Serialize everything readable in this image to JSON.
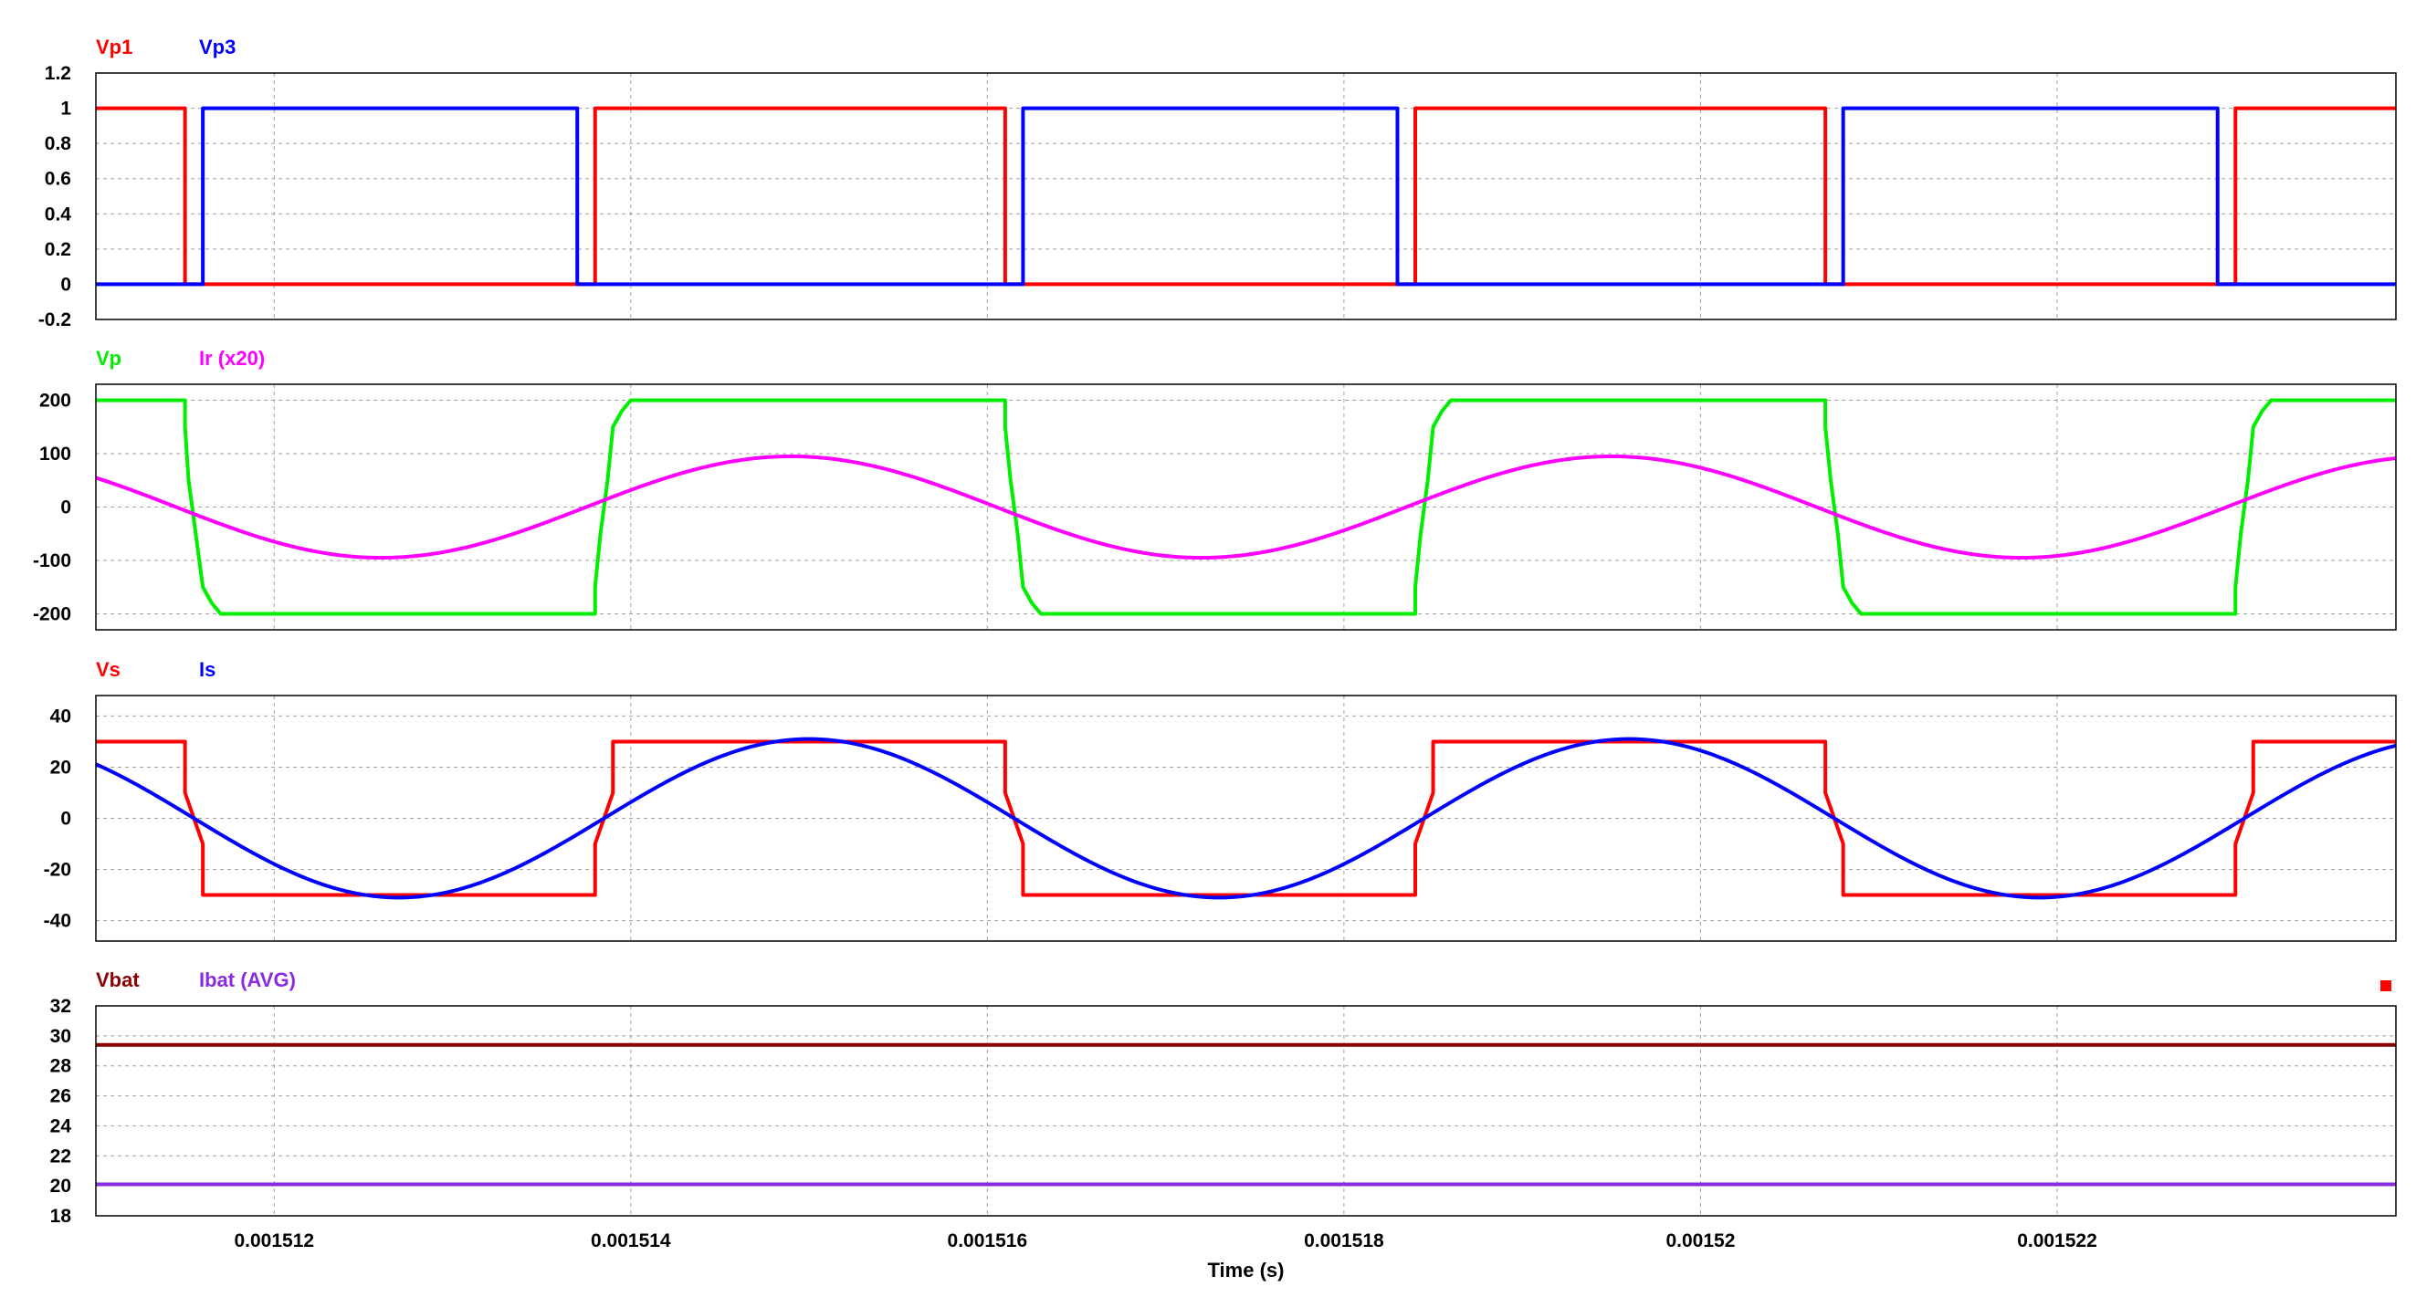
{
  "chart_data": [
    {
      "type": "line",
      "legend_placement": "top-left",
      "ylim": [
        -0.2,
        1.2
      ],
      "yticks": [
        1.2,
        1,
        0.8,
        0.6,
        0.4,
        0.2,
        0,
        -0.2
      ],
      "grid": true,
      "series": [
        {
          "name": "Vp1",
          "color": "#ff0000",
          "points": [
            [
              0.001511,
              1
            ],
            [
              0.0015115,
              1
            ],
            [
              0.0015115,
              0
            ],
            [
              0.0015138,
              0
            ],
            [
              0.0015138,
              1
            ],
            [
              0.0015161,
              1
            ],
            [
              0.0015161,
              0
            ],
            [
              0.0015184,
              0
            ],
            [
              0.0015184,
              1
            ],
            [
              0.0015207,
              1
            ],
            [
              0.0015207,
              0
            ],
            [
              0.001523,
              0
            ],
            [
              0.001523,
              1
            ],
            [
              0.0015239,
              1
            ]
          ]
        },
        {
          "name": "Vp3",
          "color": "#0000ff",
          "points": [
            [
              0.001511,
              0
            ],
            [
              0.0015116,
              0
            ],
            [
              0.0015116,
              1
            ],
            [
              0.0015137,
              1
            ],
            [
              0.0015137,
              0.5
            ],
            [
              0.0015137,
              0
            ],
            [
              0.0015162,
              0
            ],
            [
              0.0015162,
              1
            ],
            [
              0.0015183,
              1
            ],
            [
              0.0015183,
              0
            ],
            [
              0.0015208,
              0
            ],
            [
              0.0015208,
              1
            ],
            [
              0.0015229,
              1
            ],
            [
              0.0015229,
              0.5
            ],
            [
              0.0015229,
              0
            ],
            [
              0.0015239,
              0
            ]
          ]
        }
      ]
    },
    {
      "type": "line",
      "legend_placement": "top-left",
      "ylim": [
        -230,
        230
      ],
      "yticks": [
        200,
        100,
        0,
        -100,
        -200
      ],
      "grid": true,
      "series": [
        {
          "name": "Vp",
          "color": "#00ee00",
          "points": [
            [
              0.001511,
              200
            ],
            [
              0.0015115,
              200
            ],
            [
              0.0015115,
              150
            ],
            [
              0.00151152,
              50
            ],
            [
              0.00151156,
              -50
            ],
            [
              0.0015116,
              -150
            ],
            [
              0.00151165,
              -180
            ],
            [
              0.0015117,
              -200
            ],
            [
              0.0015138,
              -200
            ],
            [
              0.0015138,
              -150
            ],
            [
              0.00151383,
              -50
            ],
            [
              0.00151387,
              50
            ],
            [
              0.0015139,
              150
            ],
            [
              0.00151395,
              180
            ],
            [
              0.001514,
              200
            ],
            [
              0.0015161,
              200
            ],
            [
              0.0015161,
              150
            ],
            [
              0.00151613,
              50
            ],
            [
              0.00151617,
              -50
            ],
            [
              0.0015162,
              -150
            ],
            [
              0.00151625,
              -180
            ],
            [
              0.0015163,
              -200
            ],
            [
              0.0015184,
              -200
            ],
            [
              0.0015184,
              -150
            ],
            [
              0.00151843,
              -50
            ],
            [
              0.00151847,
              50
            ],
            [
              0.0015185,
              150
            ],
            [
              0.00151855,
              180
            ],
            [
              0.0015186,
              200
            ],
            [
              0.0015207,
              200
            ],
            [
              0.0015207,
              150
            ],
            [
              0.00152073,
              50
            ],
            [
              0.00152077,
              -50
            ],
            [
              0.0015208,
              -150
            ],
            [
              0.00152085,
              -180
            ],
            [
              0.0015209,
              -200
            ],
            [
              0.001523,
              -200
            ],
            [
              0.001523,
              -150
            ],
            [
              0.00152303,
              -50
            ],
            [
              0.00152307,
              50
            ],
            [
              0.0015231,
              150
            ],
            [
              0.00152315,
              180
            ],
            [
              0.0015232,
              200
            ],
            [
              0.0015239,
              200
            ]
          ]
        },
        {
          "name": "Ir (x20)",
          "color": "#ff00ff",
          "sine": {
            "amplitude": 95,
            "period": 4.6e-06,
            "phase_x": 0.0015149,
            "offset": 0
          }
        }
      ]
    },
    {
      "type": "line",
      "legend_placement": "top-left",
      "ylim": [
        -48,
        48
      ],
      "yticks": [
        40,
        20,
        0,
        -20,
        -40
      ],
      "grid": true,
      "series": [
        {
          "name": "Vs",
          "color": "#ff0000",
          "points": [
            [
              0.001511,
              30
            ],
            [
              0.0015115,
              30
            ],
            [
              0.0015115,
              10
            ],
            [
              0.0015116,
              -10
            ],
            [
              0.0015116,
              -30
            ],
            [
              0.0015138,
              -30
            ],
            [
              0.0015138,
              -10
            ],
            [
              0.0015139,
              10
            ],
            [
              0.0015139,
              30
            ],
            [
              0.0015161,
              30
            ],
            [
              0.0015161,
              10
            ],
            [
              0.0015162,
              -10
            ],
            [
              0.0015162,
              -30
            ],
            [
              0.0015184,
              -30
            ],
            [
              0.0015184,
              -10
            ],
            [
              0.0015185,
              10
            ],
            [
              0.0015185,
              30
            ],
            [
              0.0015207,
              30
            ],
            [
              0.0015207,
              10
            ],
            [
              0.0015208,
              -10
            ],
            [
              0.0015208,
              -30
            ],
            [
              0.001523,
              -30
            ],
            [
              0.001523,
              -10
            ],
            [
              0.0015231,
              10
            ],
            [
              0.0015231,
              30
            ],
            [
              0.0015239,
              30
            ]
          ]
        },
        {
          "name": "Is",
          "color": "#0000ff",
          "sine": {
            "amplitude": 31,
            "period": 4.6e-06,
            "phase_x": 0.001515,
            "offset": 0
          }
        }
      ]
    },
    {
      "type": "line",
      "legend_placement": "top-left",
      "ylim": [
        18,
        32
      ],
      "yticks": [
        32,
        30,
        28,
        26,
        24,
        22,
        20,
        18
      ],
      "grid": true,
      "series": [
        {
          "name": "Vbat",
          "color": "#8b0000",
          "points": [
            [
              0.001511,
              29.4
            ],
            [
              0.0015239,
              29.4
            ]
          ]
        },
        {
          "name": "Ibat (AVG)",
          "color": "#8a2be2",
          "points": [
            [
              0.001511,
              20.1
            ],
            [
              0.0015239,
              20.1
            ]
          ]
        }
      ]
    }
  ],
  "xaxis": {
    "xlim": [
      0.001511,
      0.0015239
    ],
    "ticks": [
      0.001512,
      0.001514,
      0.001516,
      0.001518,
      0.00152,
      0.001522
    ],
    "tick_labels": [
      "0.001512",
      "0.001514",
      "0.001516",
      "0.001518",
      "0.00152",
      "0.001522"
    ],
    "title": "Time (s)"
  },
  "colors": {
    "grid": "#a0a0a0",
    "frame": "#000000",
    "marker": "#ff0000"
  }
}
